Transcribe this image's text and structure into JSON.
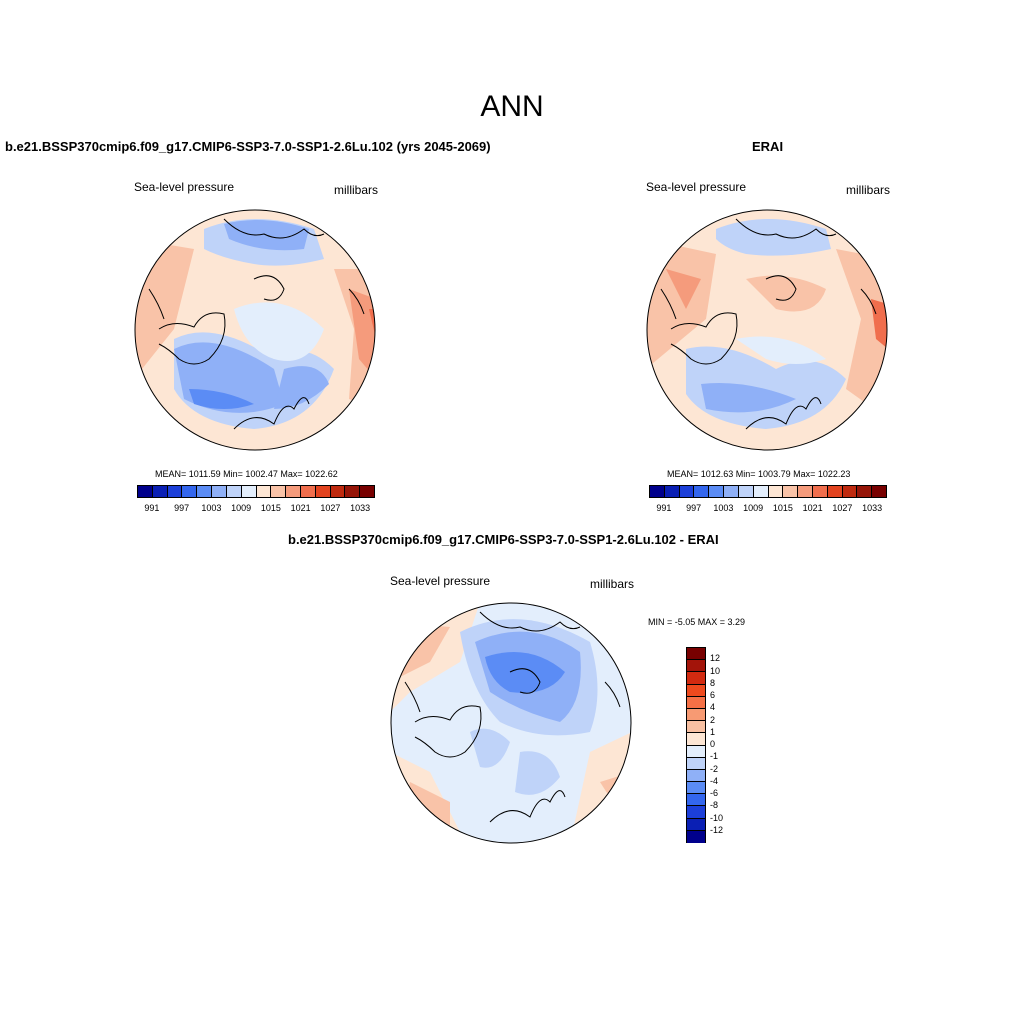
{
  "title": "ANN",
  "variable": "Sea-level pressure",
  "units": "millibars",
  "panels": {
    "model": {
      "title": "b.e21.BSSP370cmip6.f09_g17.CMIP6-SSP3-7.0-SSP1-2.6Lu.102 (yrs 2045-2069)",
      "stats": "MEAN= 1011.59  Min= 1002.47  Max= 1022.62"
    },
    "obs": {
      "title": "ERAI",
      "stats": "MEAN= 1012.63  Min= 1003.79  Max= 1022.23"
    },
    "diff": {
      "title": "b.e21.BSSP370cmip6.f09_g17.CMIP6-SSP3-7.0-SSP1-2.6Lu.102 - ERAI",
      "stats": "MIN =  -5.05 MAX =   3.29"
    }
  },
  "colorbar_abs": {
    "colors": [
      "#00008c",
      "#0a1fb4",
      "#1c3fd9",
      "#3366ee",
      "#5b8cf5",
      "#8fb0f7",
      "#bfd3f9",
      "#e3eefc",
      "#fde6d4",
      "#f9c3a8",
      "#f59b7c",
      "#f06e4d",
      "#e2431f",
      "#bf2a0f",
      "#961508",
      "#780000"
    ],
    "ticks": [
      "991",
      "997",
      "1003",
      "1009",
      "1015",
      "1021",
      "1027",
      "1033"
    ]
  },
  "colorbar_diff": {
    "colors": [
      "#780000",
      "#a3140a",
      "#d22a10",
      "#ee4a1e",
      "#f57046",
      "#f79a73",
      "#f8c0a2",
      "#fde6d4",
      "#e3eefc",
      "#bfd3f9",
      "#8fb0f7",
      "#5b8cf5",
      "#3366ee",
      "#1c3fd9",
      "#0a1fb4",
      "#00008c"
    ],
    "ticks": [
      "12",
      "10",
      "8",
      "6",
      "4",
      "2",
      "1",
      "0",
      "-1",
      "-2",
      "-4",
      "-6",
      "-8",
      "-10",
      "-12"
    ]
  }
}
